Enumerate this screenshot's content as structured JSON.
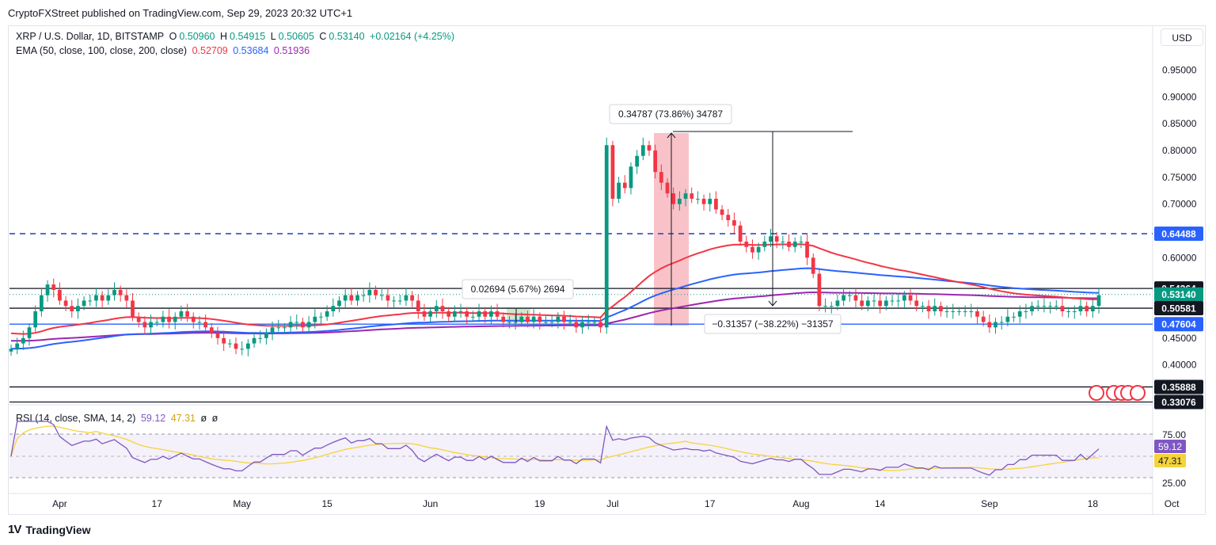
{
  "publisher_line": "CryptoFXStreet published on TradingView.com, Sep 29, 2023 20:32 UTC+1",
  "legend": {
    "symbol": "XRP / U.S. Dollar, 1D, BITSTAMP",
    "o_label": "O",
    "o_value": "0.50960",
    "h_label": "H",
    "h_value": "0.54915",
    "l_label": "L",
    "l_value": "0.50605",
    "c_label": "C",
    "c_value": "0.53140",
    "change": "+0.02164 (+4.25%)",
    "ema_label": "EMA (50, close, 100, close, 200, close)",
    "ema50": "0.52709",
    "ema100": "0.53684",
    "ema200": "0.51936",
    "rsi_label": "RSI (14, close, SMA, 14, 2)",
    "rsi_value": "59.12",
    "rsi_sma": "47.31",
    "rsi_extra1": "ø",
    "rsi_extra2": "ø"
  },
  "currency_button": "USD",
  "branding": "TradingView",
  "colors": {
    "up": "#089981",
    "down": "#f23645",
    "ema50": "#f23645",
    "ema100": "#2962ff",
    "ema200": "#9c27b0",
    "dashed_level": "#1e3fbf",
    "rsi_line": "#7e57c2",
    "rsi_sma": "#f5d33a"
  },
  "chart_data": {
    "type": "candlestick",
    "x_ticks": [
      {
        "label": "Apr",
        "day": 0
      },
      {
        "label": "17",
        "day": 16
      },
      {
        "label": "May",
        "day": 30
      },
      {
        "label": "15",
        "day": 44
      },
      {
        "label": "Jun",
        "day": 61
      },
      {
        "label": "19",
        "day": 79
      },
      {
        "label": "Jul",
        "day": 91
      },
      {
        "label": "17",
        "day": 107
      },
      {
        "label": "Aug",
        "day": 122
      },
      {
        "label": "14",
        "day": 135
      },
      {
        "label": "Sep",
        "day": 153
      },
      {
        "label": "18",
        "day": 170
      },
      {
        "label": "Oct",
        "day": 183
      }
    ],
    "y_ticks": [
      "0.95000",
      "0.90000",
      "0.85000",
      "0.80000",
      "0.75000",
      "0.70000",
      "0.60000",
      "0.45000",
      "0.40000"
    ],
    "price_range": [
      0.33,
      0.97
    ],
    "closes": [
      0.43,
      0.44,
      0.45,
      0.47,
      0.5,
      0.53,
      0.55,
      0.54,
      0.52,
      0.51,
      0.5,
      0.51,
      0.52,
      0.52,
      0.53,
      0.52,
      0.53,
      0.54,
      0.53,
      0.52,
      0.49,
      0.48,
      0.47,
      0.48,
      0.48,
      0.49,
      0.48,
      0.49,
      0.5,
      0.49,
      0.48,
      0.48,
      0.47,
      0.46,
      0.45,
      0.44,
      0.44,
      0.43,
      0.43,
      0.44,
      0.45,
      0.45,
      0.46,
      0.47,
      0.47,
      0.47,
      0.48,
      0.48,
      0.47,
      0.48,
      0.49,
      0.49,
      0.5,
      0.51,
      0.52,
      0.53,
      0.52,
      0.53,
      0.53,
      0.54,
      0.53,
      0.53,
      0.52,
      0.52,
      0.52,
      0.53,
      0.52,
      0.5,
      0.49,
      0.5,
      0.51,
      0.5,
      0.49,
      0.5,
      0.5,
      0.49,
      0.49,
      0.5,
      0.49,
      0.5,
      0.49,
      0.48,
      0.48,
      0.48,
      0.49,
      0.48,
      0.49,
      0.48,
      0.48,
      0.48,
      0.49,
      0.48,
      0.48,
      0.47,
      0.48,
      0.48,
      0.48,
      0.47,
      0.81,
      0.71,
      0.74,
      0.73,
      0.77,
      0.79,
      0.81,
      0.8,
      0.76,
      0.74,
      0.72,
      0.7,
      0.71,
      0.72,
      0.71,
      0.71,
      0.7,
      0.71,
      0.69,
      0.68,
      0.67,
      0.66,
      0.63,
      0.62,
      0.61,
      0.62,
      0.63,
      0.64,
      0.63,
      0.63,
      0.62,
      0.63,
      0.63,
      0.6,
      0.57,
      0.51,
      0.51,
      0.51,
      0.52,
      0.53,
      0.53,
      0.52,
      0.51,
      0.52,
      0.52,
      0.51,
      0.52,
      0.52,
      0.52,
      0.53,
      0.52,
      0.51,
      0.51,
      0.5,
      0.51,
      0.5,
      0.5,
      0.5,
      0.5,
      0.5,
      0.5,
      0.49,
      0.48,
      0.47,
      0.48,
      0.48,
      0.49,
      0.49,
      0.5,
      0.5,
      0.51,
      0.51,
      0.51,
      0.51,
      0.51,
      0.5,
      0.5,
      0.5,
      0.51,
      0.5,
      0.51,
      0.53
    ],
    "price_labels": [
      {
        "value": 0.64488,
        "label": "0.64488",
        "style": "dashed-blue"
      },
      {
        "value": 0.54264,
        "label": "0.54264",
        "style": "black"
      },
      {
        "value": 0.5314,
        "label": "0.53140",
        "style": "green"
      },
      {
        "value": 0.50581,
        "label": "0.50581",
        "style": "black"
      },
      {
        "value": 0.47604,
        "label": "0.47604",
        "style": "blue"
      },
      {
        "value": 0.35888,
        "label": "0.35888",
        "style": "black"
      },
      {
        "value": 0.33076,
        "label": "0.33076",
        "style": "black"
      }
    ],
    "annotations": [
      {
        "text": "0.34787 (73.86%) 34787"
      },
      {
        "text": "0.02694 (5.67%) 2694"
      },
      {
        "text": "−0.31357 (−38.22%) −31357"
      }
    ],
    "rsi_ticks": [
      "75.00",
      "25.00"
    ],
    "rsi_last": 59.12,
    "rsi_sma_last": 47.31
  }
}
